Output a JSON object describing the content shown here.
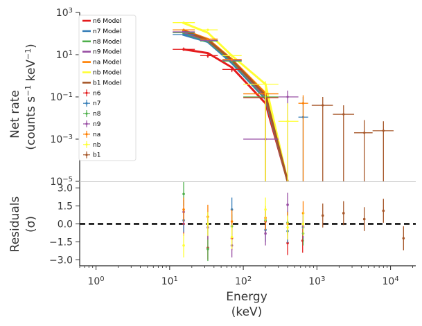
{
  "chart_data": {
    "type": "spectrum-residuals",
    "x_scale": "log",
    "xlim": [
      0.6,
      22000
    ],
    "xlabel": "Energy",
    "xlabel_unit": "(keV)",
    "x_ticks": [
      1,
      10,
      100,
      1000,
      10000
    ],
    "x_tick_labels": [
      {
        "base": "10",
        "exp": "0"
      },
      {
        "base": "10",
        "exp": "1"
      },
      {
        "base": "10",
        "exp": "2"
      },
      {
        "base": "10",
        "exp": "3"
      },
      {
        "base": "10",
        "exp": "4"
      }
    ],
    "top_panel": {
      "y_scale": "log",
      "ylim": [
        1e-05,
        1000
      ],
      "ylabel_line1": "Net rate",
      "ylabel_line2": "(counts s",
      "ylabel_exp1": "−1",
      "ylabel_mid": " keV",
      "ylabel_exp2": "−1",
      "ylabel_end": ")",
      "y_ticks": [
        1e-05,
        0.001,
        0.1,
        10,
        1000
      ],
      "y_tick_labels": [
        {
          "base": "10",
          "exp": "−5"
        },
        {
          "base": "10",
          "exp": "−3"
        },
        {
          "base": "10",
          "exp": "−1"
        },
        {
          "base": "10",
          "exp": "1"
        },
        {
          "base": "10",
          "exp": "3"
        }
      ],
      "legend_position": "top-left"
    },
    "bottom_panel": {
      "ylim": [
        -3.5,
        3.5
      ],
      "ylabel_line1": "Residuals",
      "ylabel_line2": "(σ)",
      "y_ticks": [
        -3.0,
        -1.5,
        0.0,
        1.5,
        3.0
      ],
      "y_tick_labels": [
        "−3.0",
        "−1.5",
        "0.0",
        "1.5",
        "3.0"
      ],
      "zero_line": 0
    },
    "models": [
      {
        "name": "n6 Model",
        "color": "#e41a1c",
        "x": [
          15,
          33,
          70,
          200,
          400
        ],
        "y": [
          18,
          12,
          2.5,
          0.05,
          1e-05
        ]
      },
      {
        "name": "n7 Model",
        "color": "#377eb8",
        "x": [
          15,
          33,
          70,
          200,
          400
        ],
        "y": [
          90,
          40,
          4,
          0.08,
          1e-05
        ]
      },
      {
        "name": "n8 Model",
        "color": "#4daf4a",
        "x": [
          15,
          33,
          70,
          200,
          400
        ],
        "y": [
          110,
          45,
          5,
          0.09,
          1e-05
        ]
      },
      {
        "name": "n9 Model",
        "color": "#984ea3",
        "x": [
          15,
          33,
          70,
          200,
          400
        ],
        "y": [
          120,
          48,
          5.5,
          0.1,
          1e-05
        ]
      },
      {
        "name": "na Model",
        "color": "#ff7f00",
        "x": [
          15,
          33,
          70,
          200,
          400
        ],
        "y": [
          150,
          55,
          6,
          0.15,
          1e-05
        ]
      },
      {
        "name": "nb Model",
        "color": "#ffff33",
        "x": [
          15,
          33,
          70,
          200,
          400
        ],
        "y": [
          330,
          110,
          9,
          0.4,
          1e-05
        ]
      },
      {
        "name": "b1 Model",
        "color": "#a65628",
        "x": [
          15,
          33,
          70,
          200,
          400
        ],
        "y": [
          140,
          50,
          5.5,
          0.12,
          1e-05
        ]
      }
    ],
    "series": [
      {
        "name": "n6",
        "color": "#e41a1c",
        "points": [
          {
            "x": 15.5,
            "xlo": 11,
            "xhi": 22,
            "y": 18,
            "ylo": 15,
            "yhi": 22
          },
          {
            "x": 33,
            "xlo": 26,
            "xhi": 45,
            "y": 9,
            "ylo": 7,
            "yhi": 11
          },
          {
            "x": 70,
            "xlo": 52,
            "xhi": 95,
            "y": 2,
            "ylo": 1.5,
            "yhi": 2.7
          },
          {
            "x": 200,
            "xlo": 100,
            "xhi": 300,
            "y": 0.09,
            "ylo": 1e-05,
            "yhi": 0.15
          }
        ]
      },
      {
        "name": "n7",
        "color": "#377eb8",
        "points": [
          {
            "x": 15.5,
            "xlo": 11,
            "xhi": 22,
            "y": 90,
            "ylo": 80,
            "yhi": 100
          },
          {
            "x": 33,
            "xlo": 26,
            "xhi": 45,
            "y": 45,
            "ylo": 40,
            "yhi": 52
          },
          {
            "x": 70,
            "xlo": 52,
            "xhi": 95,
            "y": 5,
            "ylo": 4,
            "yhi": 6
          },
          {
            "x": 650,
            "xlo": 560,
            "xhi": 760,
            "y": 0.011,
            "ylo": 1e-05,
            "yhi": 0.1
          }
        ]
      },
      {
        "name": "n8",
        "color": "#4daf4a",
        "points": [
          {
            "x": 15.5,
            "xlo": 11,
            "xhi": 22,
            "y": 110,
            "ylo": 95,
            "yhi": 125
          },
          {
            "x": 33,
            "xlo": 26,
            "xhi": 45,
            "y": 45,
            "ylo": 40,
            "yhi": 52
          },
          {
            "x": 70,
            "xlo": 52,
            "xhi": 95,
            "y": 5,
            "ylo": 4.2,
            "yhi": 6
          },
          {
            "x": 200,
            "xlo": 100,
            "xhi": 300,
            "y": 0.1,
            "ylo": 1e-05,
            "yhi": 0.15
          }
        ]
      },
      {
        "name": "n9",
        "color": "#984ea3",
        "points": [
          {
            "x": 15.5,
            "xlo": 11,
            "xhi": 22,
            "y": 120,
            "ylo": 105,
            "yhi": 135
          },
          {
            "x": 33,
            "xlo": 26,
            "xhi": 45,
            "y": 48,
            "ylo": 42,
            "yhi": 55
          },
          {
            "x": 70,
            "xlo": 52,
            "xhi": 95,
            "y": 5.5,
            "ylo": 4.5,
            "yhi": 6.5
          },
          {
            "x": 200,
            "xlo": 100,
            "xhi": 300,
            "y": 0.001,
            "ylo": 1e-05,
            "yhi": 0.05
          },
          {
            "x": 400,
            "xlo": 300,
            "xhi": 560,
            "y": 0.1,
            "ylo": 1e-05,
            "yhi": 0.2
          }
        ]
      },
      {
        "name": "na",
        "color": "#ff7f00",
        "points": [
          {
            "x": 15.5,
            "xlo": 11,
            "xhi": 22,
            "y": 150,
            "ylo": 135,
            "yhi": 170
          },
          {
            "x": 33,
            "xlo": 26,
            "xhi": 45,
            "y": 55,
            "ylo": 48,
            "yhi": 62
          },
          {
            "x": 70,
            "xlo": 52,
            "xhi": 95,
            "y": 6,
            "ylo": 5,
            "yhi": 7
          },
          {
            "x": 200,
            "xlo": 100,
            "xhi": 300,
            "y": 0.14,
            "ylo": 1e-05,
            "yhi": 0.2
          },
          {
            "x": 650,
            "xlo": 560,
            "xhi": 760,
            "y": 0.05,
            "ylo": 1e-05,
            "yhi": 0.12
          }
        ]
      },
      {
        "name": "nb",
        "color": "#ffff33",
        "points": [
          {
            "x": 15.5,
            "xlo": 11,
            "xhi": 22,
            "y": 330,
            "ylo": 300,
            "yhi": 360
          },
          {
            "x": 33,
            "xlo": 26,
            "xhi": 45,
            "y": 150,
            "ylo": 130,
            "yhi": 170
          },
          {
            "x": 70,
            "xlo": 52,
            "xhi": 95,
            "y": 9,
            "ylo": 7.5,
            "yhi": 10.5
          },
          {
            "x": 200,
            "xlo": 100,
            "xhi": 300,
            "y": 0.4,
            "ylo": 1e-05,
            "yhi": 0.55
          },
          {
            "x": 400,
            "xlo": 300,
            "xhi": 560,
            "y": 0.007,
            "ylo": 1e-05,
            "yhi": 0.05
          }
        ]
      },
      {
        "name": "b1",
        "color": "#a65628",
        "points": [
          {
            "x": 1200,
            "xlo": 850,
            "xhi": 1650,
            "y": 0.04,
            "ylo": 1e-05,
            "yhi": 0.1
          },
          {
            "x": 2300,
            "xlo": 1650,
            "xhi": 3200,
            "y": 0.015,
            "ylo": 1e-05,
            "yhi": 0.04
          },
          {
            "x": 4400,
            "xlo": 3200,
            "xhi": 5700,
            "y": 0.002,
            "ylo": 1e-05,
            "yhi": 0.008
          },
          {
            "x": 8000,
            "xlo": 5700,
            "xhi": 11000,
            "y": 0.0025,
            "ylo": 1e-05,
            "yhi": 0.007
          }
        ]
      }
    ],
    "residuals": [
      {
        "name": "n6",
        "color": "#e41a1c",
        "points": [
          {
            "x": 15.5,
            "y": 0,
            "err": 1
          },
          {
            "x": 33,
            "y": -2,
            "err": 1
          },
          {
            "x": 70,
            "y": -1.2,
            "err": 1
          },
          {
            "x": 200,
            "y": 0.2,
            "err": 1
          },
          {
            "x": 400,
            "y": -1.6,
            "err": 1
          },
          {
            "x": 640,
            "y": -1.4,
            "err": 1
          }
        ]
      },
      {
        "name": "n7",
        "color": "#377eb8",
        "points": [
          {
            "x": 15.5,
            "y": 0.3,
            "err": 1
          },
          {
            "x": 33,
            "y": 0,
            "err": 1
          },
          {
            "x": 70,
            "y": 1.2,
            "err": 1
          },
          {
            "x": 200,
            "y": -0.5,
            "err": 1
          },
          {
            "x": 400,
            "y": -0.6,
            "err": 1
          },
          {
            "x": 650,
            "y": -0.3,
            "err": 1
          }
        ]
      },
      {
        "name": "n8",
        "color": "#4daf4a",
        "points": [
          {
            "x": 15.5,
            "y": 2.5,
            "err": 1
          },
          {
            "x": 33,
            "y": -2.1,
            "err": 1
          },
          {
            "x": 70,
            "y": -0.2,
            "err": 1
          },
          {
            "x": 200,
            "y": 0.3,
            "err": 1
          },
          {
            "x": 400,
            "y": 0.1,
            "err": 1
          },
          {
            "x": 650,
            "y": -0.8,
            "err": 1
          }
        ]
      },
      {
        "name": "n9",
        "color": "#984ea3",
        "points": [
          {
            "x": 15.5,
            "y": 1,
            "err": 1
          },
          {
            "x": 33,
            "y": -0.3,
            "err": 1
          },
          {
            "x": 70,
            "y": -1.8,
            "err": 1
          },
          {
            "x": 200,
            "y": -0.8,
            "err": 1
          },
          {
            "x": 400,
            "y": 1.6,
            "err": 1
          },
          {
            "x": 650,
            "y": -0.2,
            "err": 1
          }
        ]
      },
      {
        "name": "na",
        "color": "#ff7f00",
        "points": [
          {
            "x": 15.5,
            "y": 1.2,
            "err": 1
          },
          {
            "x": 33,
            "y": 0.6,
            "err": 1
          },
          {
            "x": 70,
            "y": 0.2,
            "err": 1
          },
          {
            "x": 200,
            "y": 0.5,
            "err": 1
          },
          {
            "x": 400,
            "y": 0,
            "err": 1
          },
          {
            "x": 650,
            "y": 0.9,
            "err": 1
          }
        ]
      },
      {
        "name": "nb",
        "color": "#ffff33",
        "points": [
          {
            "x": 15.5,
            "y": -1.8,
            "err": 1
          },
          {
            "x": 33,
            "y": 0,
            "err": 1
          },
          {
            "x": 70,
            "y": -1.1,
            "err": 1
          },
          {
            "x": 200,
            "y": 1.2,
            "err": 1
          },
          {
            "x": 400,
            "y": -0.3,
            "err": 1
          },
          {
            "x": 650,
            "y": 0,
            "err": 1
          }
        ]
      },
      {
        "name": "b1",
        "color": "#a65628",
        "points": [
          {
            "x": 1200,
            "y": 0.7,
            "err": 1
          },
          {
            "x": 2300,
            "y": 0.9,
            "err": 1
          },
          {
            "x": 4400,
            "y": 0.4,
            "err": 1
          },
          {
            "x": 8000,
            "y": 1.1,
            "err": 1
          },
          {
            "x": 15000,
            "y": -1.2,
            "err": 1
          }
        ]
      }
    ]
  }
}
